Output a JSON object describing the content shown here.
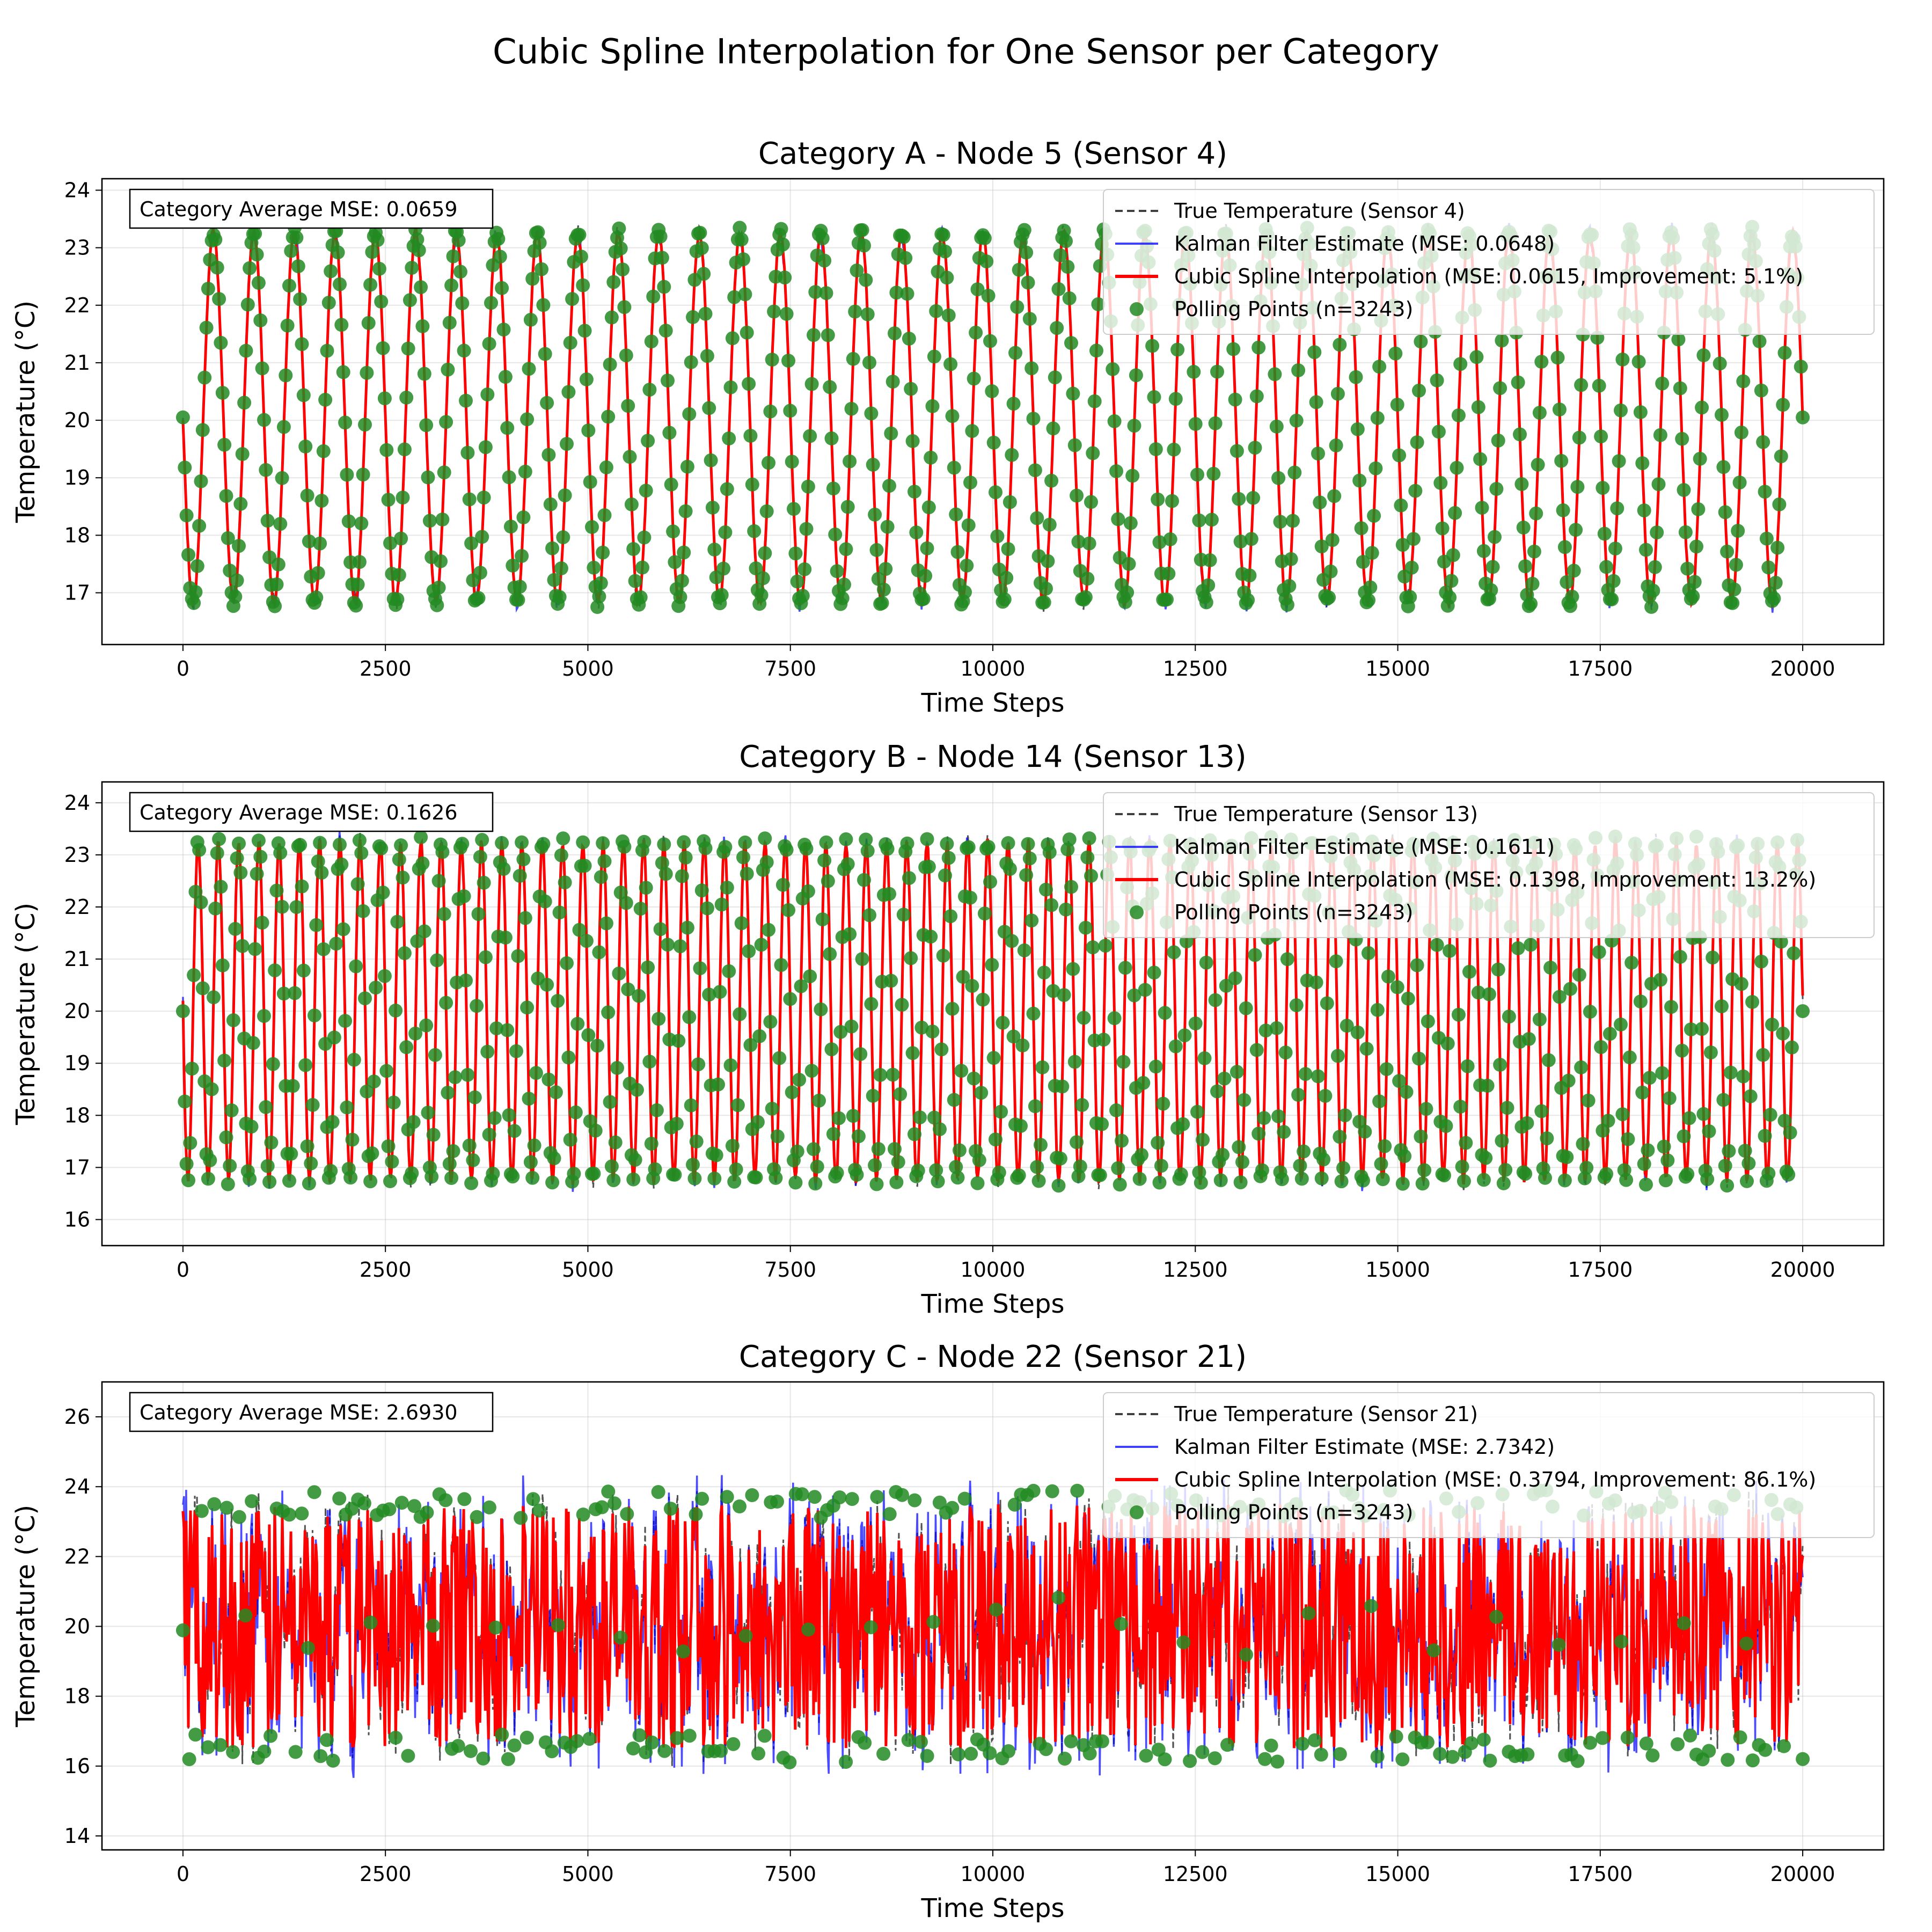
{
  "title": "Cubic Spline Interpolation for One Sensor per Category",
  "colors": {
    "true_temperature": "#3f3f3f",
    "kalman": "#0000ff",
    "spline": "#ff0000",
    "polling": "#228b22"
  },
  "chart_data": [
    {
      "type": "line",
      "title": "Category A - Node 5 (Sensor 4)",
      "xlabel": "Time Steps",
      "ylabel": "Temperature (°C)",
      "xlim": [
        -1000,
        21000
      ],
      "ylim": [
        16.1,
        24.2
      ],
      "xticks": [
        0,
        2500,
        5000,
        7500,
        10000,
        12500,
        15000,
        17500,
        20000
      ],
      "yticks": [
        17,
        18,
        19,
        20,
        21,
        22,
        23,
        24
      ],
      "grid": true,
      "legend_position": "top-right",
      "annotation": "Category Average MSE: 0.0659",
      "signal": {
        "pattern": "periodic",
        "period": 500,
        "min": 16.8,
        "max": 23.3,
        "start_value": 20.0,
        "end_value": 20.0
      },
      "series": [
        {
          "name": "True Temperature (Sensor 4)",
          "style": "dashed"
        },
        {
          "name": "Kalman Filter Estimate (MSE: 0.0648)",
          "style": "solid"
        },
        {
          "name": "Cubic Spline Interpolation (MSE: 0.0615, Improvement: 5.1%)",
          "style": "solid"
        },
        {
          "name": "Polling Points (n=3243)",
          "style": "markers"
        }
      ]
    },
    {
      "type": "line",
      "title": "Category B - Node 14 (Sensor 13)",
      "xlabel": "Time Steps",
      "ylabel": "Temperature (°C)",
      "xlim": [
        -1000,
        21000
      ],
      "ylim": [
        15.5,
        24.4
      ],
      "xticks": [
        0,
        2500,
        5000,
        7500,
        10000,
        12500,
        15000,
        17500,
        20000
      ],
      "yticks": [
        16,
        17,
        18,
        19,
        20,
        21,
        22,
        23,
        24
      ],
      "grid": true,
      "legend_position": "top-right",
      "annotation": "Category Average MSE: 0.1626",
      "signal": {
        "pattern": "periodic",
        "period": 250,
        "min": 16.7,
        "max": 23.3,
        "start_value": 20.2,
        "end_value": 20.3
      },
      "series": [
        {
          "name": "True Temperature (Sensor 13)",
          "style": "dashed"
        },
        {
          "name": "Kalman Filter Estimate (MSE: 0.1611)",
          "style": "solid"
        },
        {
          "name": "Cubic Spline Interpolation (MSE: 0.1398, Improvement: 13.2%)",
          "style": "solid"
        },
        {
          "name": "Polling Points (n=3243)",
          "style": "markers"
        }
      ]
    },
    {
      "type": "line",
      "title": "Category C - Node 22 (Sensor 21)",
      "xlabel": "Time Steps",
      "ylabel": "Temperature (°C)",
      "xlim": [
        -1000,
        21000
      ],
      "ylim": [
        13.6,
        27.0
      ],
      "xticks": [
        0,
        2500,
        5000,
        7500,
        10000,
        12500,
        15000,
        17500,
        20000
      ],
      "yticks": [
        14,
        16,
        18,
        20,
        22,
        24,
        26
      ],
      "grid": true,
      "legend_position": "top-right",
      "annotation": "Category Average MSE: 2.6930",
      "signal": {
        "pattern": "noisy-dense",
        "period": 60,
        "min": 16.5,
        "max": 23.5,
        "start_value": 20.0,
        "end_value": 20.0
      },
      "series": [
        {
          "name": "True Temperature (Sensor 21)",
          "style": "dashed"
        },
        {
          "name": "Kalman Filter Estimate (MSE: 2.7342)",
          "style": "solid"
        },
        {
          "name": "Cubic Spline Interpolation (MSE: 0.3794, Improvement: 86.1%)",
          "style": "solid"
        },
        {
          "name": "Polling Points (n=3243)",
          "style": "markers"
        }
      ]
    }
  ]
}
